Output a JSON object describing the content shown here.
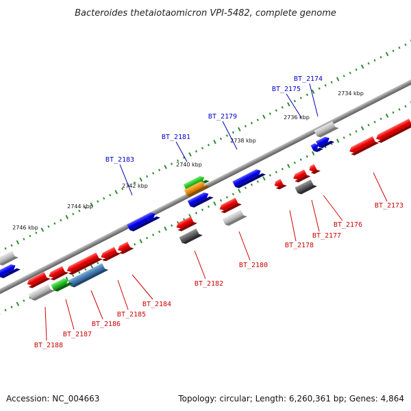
{
  "title": "Bacteroides thetaiotaomicron VPI-5482, complete genome",
  "footer": {
    "accession": "Accession: NC_004663",
    "summary": "Topology: circular; Length: 6,260,361 bp; Genes: 4,864"
  },
  "colors": {
    "forward_label": "#0000cc",
    "reverse_label": "#cc0000",
    "connector_forward": "#0000aa",
    "connector_reverse": "#cc0000",
    "backbone": "#808080",
    "tick": "#2a8a2a"
  },
  "positions": [
    {
      "label": "2734 kbp",
      "kbp": 2734
    },
    {
      "label": "2736 kbp",
      "kbp": 2736
    },
    {
      "label": "2738 kbp",
      "kbp": 2738
    },
    {
      "label": "2740 kbp",
      "kbp": 2740
    },
    {
      "label": "2742 kbp",
      "kbp": 2742
    },
    {
      "label": "2744 kbp",
      "kbp": 2744
    },
    {
      "label": "2746 kbp",
      "kbp": 2746
    }
  ],
  "genes": [
    {
      "id": "BT_2174",
      "strand": "forward"
    },
    {
      "id": "BT_2175",
      "strand": "forward"
    },
    {
      "id": "BT_2179",
      "strand": "forward"
    },
    {
      "id": "BT_2181",
      "strand": "forward"
    },
    {
      "id": "BT_2183",
      "strand": "forward"
    },
    {
      "id": "BT_2173",
      "strand": "reverse"
    },
    {
      "id": "BT_2176",
      "strand": "reverse"
    },
    {
      "id": "BT_2177",
      "strand": "reverse"
    },
    {
      "id": "BT_2178",
      "strand": "reverse"
    },
    {
      "id": "BT_2180",
      "strand": "reverse"
    },
    {
      "id": "BT_2182",
      "strand": "reverse"
    },
    {
      "id": "BT_2184",
      "strand": "reverse"
    },
    {
      "id": "BT_2185",
      "strand": "reverse"
    },
    {
      "id": "BT_2186",
      "strand": "reverse"
    },
    {
      "id": "BT_2187",
      "strand": "reverse"
    },
    {
      "id": "BT_2188",
      "strand": "reverse"
    }
  ]
}
